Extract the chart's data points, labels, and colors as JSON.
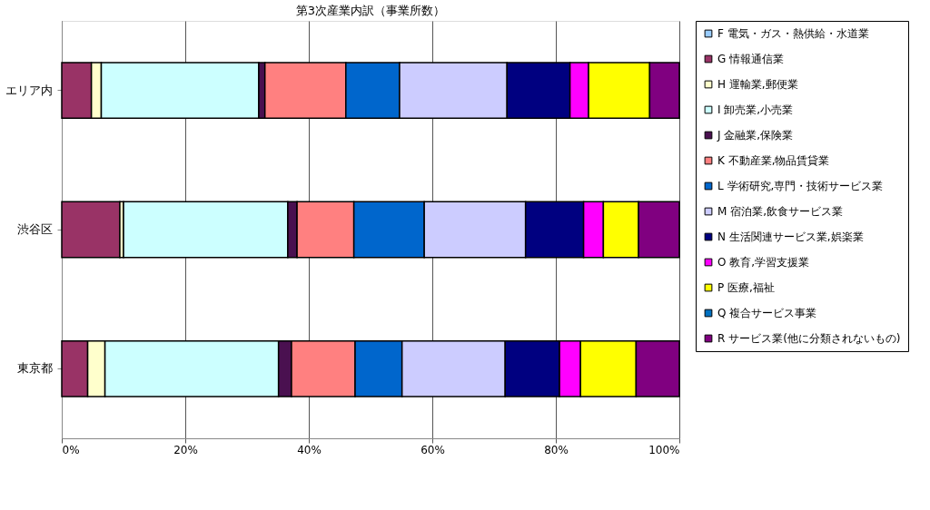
{
  "chart_data": {
    "type": "bar",
    "title": "第3次産業内訳（事業所数）",
    "orientation": "horizontal",
    "stacked": true,
    "categories": [
      "エリア内",
      "渋谷区",
      "東京都"
    ],
    "series": [
      {
        "name": "F 電気・ガス・熱供給・水道業",
        "color": "#99ccff",
        "values": [
          null,
          null,
          null
        ]
      },
      {
        "name": "G 情報通信業",
        "color": "#993366",
        "values": [
          4.8,
          9.4,
          4.2
        ]
      },
      {
        "name": "H 運輸業,郵便業",
        "color": "#ffffcc",
        "values": [
          1.6,
          0.6,
          2.8
        ]
      },
      {
        "name": "I 卸売業,小売業",
        "color": "#ccffff",
        "values": [
          25.5,
          26.6,
          28.1
        ]
      },
      {
        "name": "J 金融業,保険業",
        "color": "#4a1050",
        "values": [
          1.0,
          1.5,
          2.1
        ]
      },
      {
        "name": "K 不動産業,物品賃貸業",
        "color": "#ff8080",
        "values": [
          13.1,
          9.2,
          10.3
        ]
      },
      {
        "name": "L 学術研究,専門・技術サービス業",
        "color": "#0066cc",
        "values": [
          8.7,
          11.4,
          7.6
        ]
      },
      {
        "name": "M 宿泊業,飲食サービス業",
        "color": "#ccccff",
        "values": [
          17.4,
          16.4,
          16.7
        ]
      },
      {
        "name": "N 生活関連サービス業,娯楽業",
        "color": "#000080",
        "values": [
          10.2,
          9.4,
          8.8
        ]
      },
      {
        "name": "O 教育,学習支援業",
        "color": "#ff00ff",
        "values": [
          3.0,
          3.2,
          3.4
        ]
      },
      {
        "name": "P 医療,福祉",
        "color": "#ffff00",
        "values": [
          9.9,
          5.7,
          9.0
        ]
      },
      {
        "name": "Q 複合サービス事業",
        "color": "#0070c0",
        "values": [
          null,
          null,
          null
        ]
      },
      {
        "name": "R サービス業(他に分類されないもの)",
        "color": "#800080",
        "values": [
          4.8,
          6.6,
          7.0
        ]
      }
    ],
    "xlim": [
      0,
      100
    ],
    "xticks": [
      {
        "value": 0,
        "label": "0%"
      },
      {
        "value": 20,
        "label": "20%"
      },
      {
        "value": 40,
        "label": "40%"
      },
      {
        "value": 60,
        "label": "60%"
      },
      {
        "value": 80,
        "label": "80%"
      },
      {
        "value": 100,
        "label": "100%"
      }
    ],
    "grid": "x",
    "legend": "right"
  }
}
